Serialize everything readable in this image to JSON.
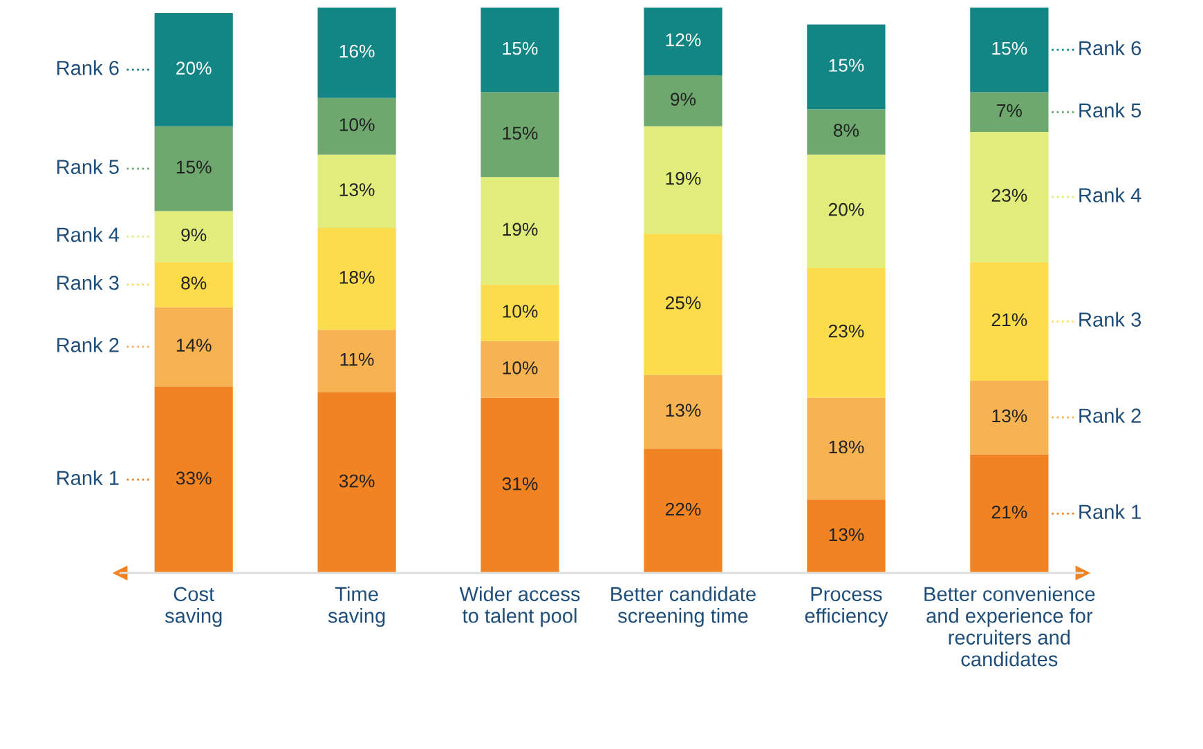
{
  "chart_data": {
    "type": "bar",
    "stacked": true,
    "legend": "right",
    "categories": [
      "Cost\nsaving",
      "Time\nsaving",
      "Wider access\nto talent pool",
      "Better candidate\nscreening time",
      "Process\nefficiency",
      "Better convenience\nand experience for\nrecruiters and\ncandidates"
    ],
    "series": [
      {
        "name": "Rank 1",
        "color": "#f28322",
        "values": [
          33,
          32,
          31,
          22,
          13,
          21
        ],
        "value_labels": [
          "33%",
          "32%",
          "31%",
          "22%",
          "13%",
          "21%"
        ]
      },
      {
        "name": "Rank 2",
        "color": "#f7b352",
        "values": [
          14,
          11,
          10,
          13,
          18,
          13
        ],
        "value_labels": [
          "14%",
          "11%",
          "10%",
          "13%",
          "18%",
          "13%"
        ]
      },
      {
        "name": "Rank 3",
        "color": "#fcdc4d",
        "values": [
          8,
          18,
          10,
          25,
          23,
          21
        ],
        "value_labels": [
          "8%",
          "18%",
          "10%",
          "25%",
          "23%",
          "21%"
        ]
      },
      {
        "name": "Rank 4",
        "color": "#e0ed7a",
        "values": [
          9,
          13,
          19,
          19,
          20,
          23
        ],
        "value_labels": [
          "9%",
          "13%",
          "19%",
          "19%",
          "20%",
          "23%"
        ]
      },
      {
        "name": "Rank 5",
        "color": "#6fa86e",
        "values": [
          15,
          10,
          15,
          9,
          8,
          7
        ],
        "value_labels": [
          "15%",
          "10%",
          "15%",
          "9%",
          "8%",
          "7%"
        ]
      },
      {
        "name": "Rank 6",
        "color": "#138585",
        "values": [
          20,
          16,
          15,
          12,
          15,
          15
        ],
        "value_labels": [
          "20%",
          "16%",
          "15%",
          "12%",
          "15%",
          "15%"
        ]
      }
    ]
  }
}
